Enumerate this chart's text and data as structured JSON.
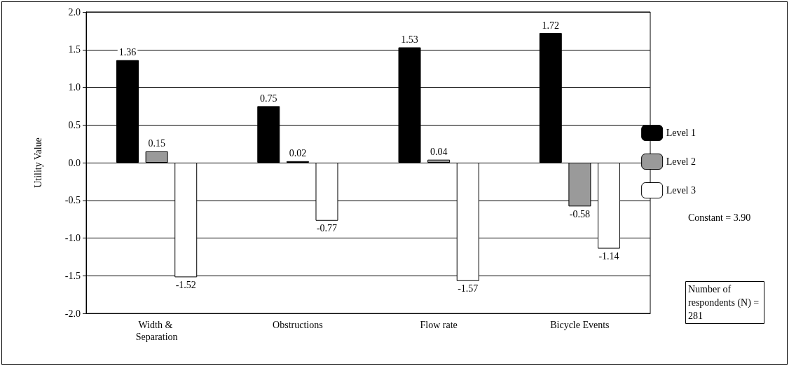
{
  "chart_data": {
    "type": "bar",
    "ylabel": "Utility Value",
    "categories": [
      "Width & Separation",
      "Obstructions",
      "Flow rate",
      "Bicycle Events"
    ],
    "series": [
      {
        "name": "Level 1",
        "color": "#000000",
        "values": [
          1.36,
          0.75,
          1.53,
          1.72
        ]
      },
      {
        "name": "Level 2",
        "color": "#9a9a9a",
        "values": [
          0.15,
          0.02,
          0.04,
          -0.58
        ]
      },
      {
        "name": "Level 3",
        "color": "#ffffff",
        "values": [
          -1.52,
          -0.77,
          -1.57,
          -1.14
        ]
      }
    ],
    "ylim": [
      -2.0,
      2.0
    ],
    "yticks": [
      {
        "value": -2.0,
        "label": "-2.0"
      },
      {
        "value": -1.5,
        "label": "-1.5"
      },
      {
        "value": -1.0,
        "label": "-1.0"
      },
      {
        "value": -0.5,
        "label": "-0.5"
      },
      {
        "value": 0,
        "label": "0.0"
      },
      {
        "value": 0.5,
        "label": "0.5"
      },
      {
        "value": 1.0,
        "label": "1.0"
      },
      {
        "value": 1.5,
        "label": "1.5"
      },
      {
        "value": 2.0,
        "label": "2.0"
      }
    ],
    "data_labels": true,
    "grid": "y",
    "legend": "right",
    "annotations": [
      "Constant = 3.90",
      "Number of respondents (N) = 281"
    ]
  }
}
